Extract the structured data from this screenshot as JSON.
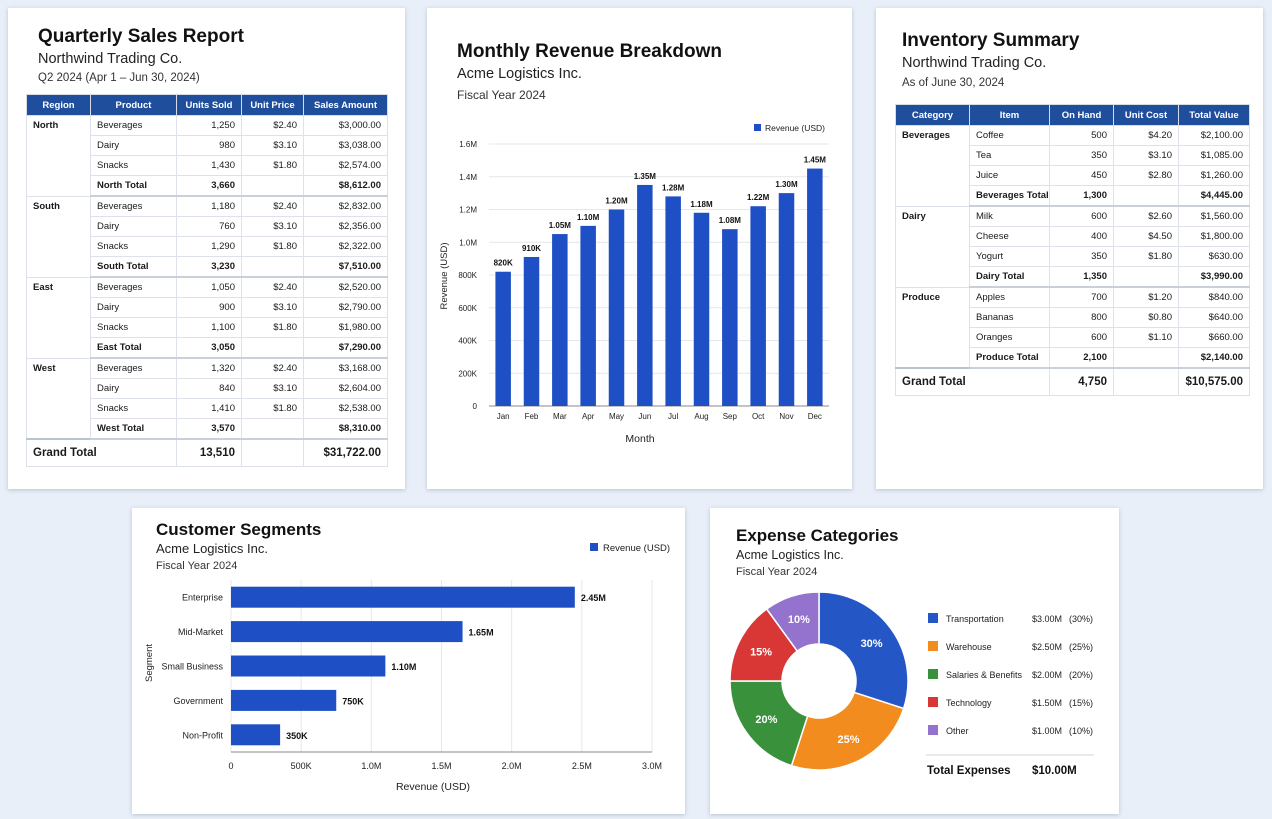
{
  "quarterly": {
    "title": "Quarterly Sales Report",
    "company": "Northwind Trading Co.",
    "period": "Q2 2024 (Apr 1 – Jun 30, 2024)",
    "columns": [
      "Region",
      "Product",
      "Units Sold",
      "Unit Price",
      "Sales Amount"
    ],
    "groups": [
      {
        "region": "North",
        "rows": [
          [
            "Beverages",
            "1,250",
            "$2.40",
            "$3,000.00"
          ],
          [
            "Dairy",
            "980",
            "$3.10",
            "$3,038.00"
          ],
          [
            "Snacks",
            "1,430",
            "$1.80",
            "$2,574.00"
          ]
        ],
        "total_label": "North Total",
        "total_units": "3,660",
        "total_amount": "$8,612.00"
      },
      {
        "region": "South",
        "rows": [
          [
            "Beverages",
            "1,180",
            "$2.40",
            "$2,832.00"
          ],
          [
            "Dairy",
            "760",
            "$3.10",
            "$2,356.00"
          ],
          [
            "Snacks",
            "1,290",
            "$1.80",
            "$2,322.00"
          ]
        ],
        "total_label": "South Total",
        "total_units": "3,230",
        "total_amount": "$7,510.00"
      },
      {
        "region": "East",
        "rows": [
          [
            "Beverages",
            "1,050",
            "$2.40",
            "$2,520.00"
          ],
          [
            "Dairy",
            "900",
            "$3.10",
            "$2,790.00"
          ],
          [
            "Snacks",
            "1,100",
            "$1.80",
            "$1,980.00"
          ]
        ],
        "total_label": "East Total",
        "total_units": "3,050",
        "total_amount": "$7,290.00"
      },
      {
        "region": "West",
        "rows": [
          [
            "Beverages",
            "1,320",
            "$2.40",
            "$3,168.00"
          ],
          [
            "Dairy",
            "840",
            "$3.10",
            "$2,604.00"
          ],
          [
            "Snacks",
            "1,410",
            "$1.80",
            "$2,538.00"
          ]
        ],
        "total_label": "West Total",
        "total_units": "3,570",
        "total_amount": "$8,310.00"
      }
    ],
    "grand_label": "Grand Total",
    "grand_units": "13,510",
    "grand_amount": "$31,722.00"
  },
  "inventory": {
    "title": "Inventory Summary",
    "company": "Northwind Trading Co.",
    "asof": "As of June 30, 2024",
    "columns": [
      "Category",
      "Item",
      "On Hand",
      "Unit Cost",
      "Total Value"
    ],
    "groups": [
      {
        "category": "Beverages",
        "rows": [
          [
            "Coffee",
            "500",
            "$4.20",
            "$2,100.00"
          ],
          [
            "Tea",
            "350",
            "$3.10",
            "$1,085.00"
          ],
          [
            "Juice",
            "450",
            "$2.80",
            "$1,260.00"
          ]
        ],
        "total_label": "Beverages Total",
        "total_qty": "1,300",
        "total_value": "$4,445.00"
      },
      {
        "category": "Dairy",
        "rows": [
          [
            "Milk",
            "600",
            "$2.60",
            "$1,560.00"
          ],
          [
            "Cheese",
            "400",
            "$4.50",
            "$1,800.00"
          ],
          [
            "Yogurt",
            "350",
            "$1.80",
            "$630.00"
          ]
        ],
        "total_label": "Dairy Total",
        "total_qty": "1,350",
        "total_value": "$3,990.00"
      },
      {
        "category": "Produce",
        "rows": [
          [
            "Apples",
            "700",
            "$1.20",
            "$840.00"
          ],
          [
            "Bananas",
            "800",
            "$0.80",
            "$640.00"
          ],
          [
            "Oranges",
            "600",
            "$1.10",
            "$660.00"
          ]
        ],
        "total_label": "Produce Total",
        "total_qty": "2,100",
        "total_value": "$2,140.00"
      }
    ],
    "grand_label": "Grand Total",
    "grand_qty": "4,750",
    "grand_value": "$10,575.00"
  },
  "chart_data": [
    {
      "type": "bar",
      "title": "Monthly Revenue Breakdown",
      "subtitle": "Acme Logistics Inc.",
      "subtitle2": "Fiscal Year 2024",
      "xlabel": "Month",
      "ylabel": "Revenue (USD)",
      "legend": "Revenue (USD)",
      "legend_position": "top-right",
      "categories": [
        "Jan",
        "Feb",
        "Mar",
        "Apr",
        "May",
        "Jun",
        "Jul",
        "Aug",
        "Sep",
        "Oct",
        "Nov",
        "Dec"
      ],
      "values": [
        820000,
        910000,
        1050000,
        1100000,
        1200000,
        1350000,
        1280000,
        1180000,
        1080000,
        1220000,
        1300000,
        1450000
      ],
      "labels": [
        "820K",
        "910K",
        "1.05M",
        "1.10M",
        "1.20M",
        "1.35M",
        "1.28M",
        "1.18M",
        "1.08M",
        "1.22M",
        "1.30M",
        "1.45M"
      ],
      "ylim": [
        0,
        1600000
      ],
      "yticks": [
        0,
        200000,
        400000,
        600000,
        800000,
        1000000,
        1200000,
        1400000,
        1600000
      ],
      "ytick_labels": [
        "0",
        "200K",
        "400K",
        "600K",
        "800K",
        "1.0M",
        "1.2M",
        "1.4M",
        "1.6M"
      ],
      "grid": true,
      "color": "#1f4fc4"
    },
    {
      "type": "bar",
      "orientation": "horizontal",
      "title": "Customer Segments",
      "subtitle": "Acme Logistics Inc.",
      "subtitle2": "Fiscal Year 2024",
      "xlabel": "Revenue (USD)",
      "ylabel": "Segment",
      "legend": "Revenue (USD)",
      "legend_position": "top-right",
      "categories": [
        "Enterprise",
        "Mid-Market",
        "Small Business",
        "Government",
        "Non-Profit"
      ],
      "values": [
        2450000,
        1650000,
        1100000,
        750000,
        350000
      ],
      "labels": [
        "2.45M",
        "1.65M",
        "1.10M",
        "750K",
        "350K"
      ],
      "xlim": [
        0,
        3000000
      ],
      "xticks": [
        0,
        500000,
        1000000,
        1500000,
        2000000,
        2500000,
        3000000
      ],
      "xtick_labels": [
        "0",
        "500K",
        "1.0M",
        "1.5M",
        "2.0M",
        "2.5M",
        "3.0M"
      ],
      "grid": true,
      "color": "#1f4fc4"
    },
    {
      "type": "pie",
      "donut": true,
      "title": "Expense Categories",
      "subtitle": "Acme Logistics Inc.",
      "subtitle2": "Fiscal Year 2024",
      "legend_position": "right",
      "slices": [
        {
          "name": "Transportation",
          "value": 3.0,
          "amount": "$3.00M",
          "pct": "(30%)",
          "label": "30%",
          "color": "#2457c5"
        },
        {
          "name": "Warehouse",
          "value": 2.5,
          "amount": "$2.50M",
          "pct": "(25%)",
          "label": "25%",
          "color": "#f28c1e"
        },
        {
          "name": "Salaries & Benefits",
          "value": 2.0,
          "amount": "$2.00M",
          "pct": "(20%)",
          "label": "20%",
          "color": "#3a913c"
        },
        {
          "name": "Technology",
          "value": 1.5,
          "amount": "$1.50M",
          "pct": "(15%)",
          "label": "15%",
          "color": "#d93636"
        },
        {
          "name": "Other",
          "value": 1.0,
          "amount": "$1.00M",
          "pct": "(10%)",
          "label": "10%",
          "color": "#9473cf"
        }
      ],
      "total_label": "Total Expenses",
      "total_value": "$10.00M"
    }
  ]
}
